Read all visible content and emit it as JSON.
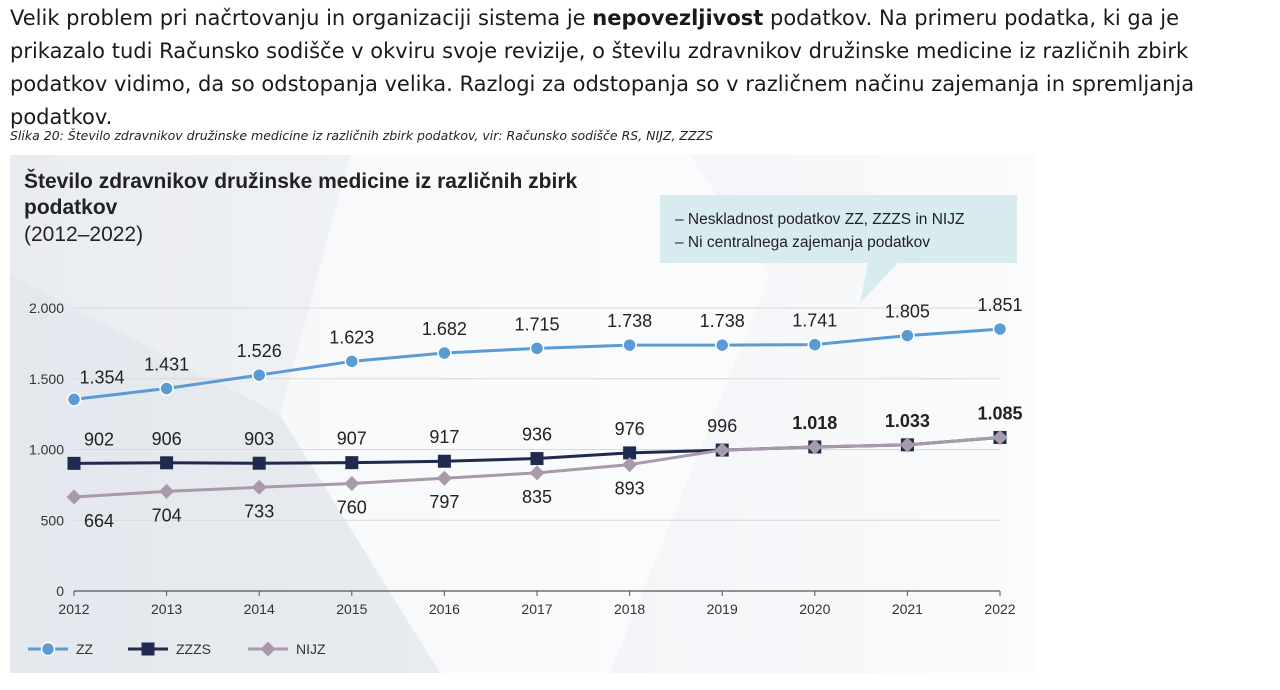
{
  "intro": {
    "part1": "Velik problem pri načrtovanju in organizaciji sistema je ",
    "bold": "nepovezljivost",
    "part2": " podatkov. Na primeru podatka, ki ga je prikazalo tudi Računsko sodišče v okviru svoje revizije, o številu zdravnikov družinske medicine iz različnih zbirk podatkov vidimo, da so odstopanja velika. Razlogi za odstopanja so v različnem načinu zajemanja in spremljanja podatkov."
  },
  "caption": "Slika 20: Število zdravnikov družinske medicine iz različnih zbirk podatkov, vir: Računsko sodišče RS, NIJZ, ZZZS",
  "callout": {
    "line1": "–  Neskladnost podatkov ZZ, ZZZS in NIJZ",
    "line2": "–  Ni centralnega zajemanja podatkov"
  },
  "colors": {
    "zz": "#5b9bd5",
    "zzzs": "#1f2a4e",
    "nijz": "#a899ab",
    "callout_bg": "#d8ecf0",
    "grid": "#d9d9d9"
  },
  "chart_data": {
    "type": "line",
    "title_line1": "Število zdravnikov družinske medicine iz različnih zbirk",
    "title_line2": "podatkov",
    "subtitle": "(2012–2022)",
    "categories": [
      "2012",
      "2013",
      "2014",
      "2015",
      "2016",
      "2017",
      "2018",
      "2019",
      "2020",
      "2021",
      "2022"
    ],
    "ylim": [
      0,
      2000
    ],
    "yticks": [
      0,
      500,
      1000,
      1500,
      2000
    ],
    "ytick_labels": [
      "0",
      "500",
      "1.000",
      "1.500",
      "2.000"
    ],
    "grid": true,
    "legend_position": "bottom-left",
    "series": [
      {
        "name": "ZZ",
        "marker": "circle",
        "color_key": "zz",
        "values": [
          1354,
          1431,
          1526,
          1623,
          1682,
          1715,
          1738,
          1738,
          1741,
          1805,
          1851
        ],
        "labels": [
          "1.354",
          "1.431",
          "1.526",
          "1.623",
          "1.682",
          "1.715",
          "1.738",
          "1.738",
          "1.741",
          "1.805",
          "1.851"
        ]
      },
      {
        "name": "ZZZS",
        "marker": "square",
        "color_key": "zzzs",
        "values": [
          902,
          906,
          903,
          907,
          917,
          936,
          976,
          996,
          1018,
          1033,
          1085
        ],
        "labels": [
          "902",
          "906",
          "903",
          "907",
          "917",
          "936",
          "976",
          "996",
          "1.018",
          "1.033",
          "1.085"
        ]
      },
      {
        "name": "NIJZ",
        "marker": "diamond",
        "color_key": "nijz",
        "values": [
          664,
          704,
          733,
          760,
          797,
          835,
          893,
          996,
          1018,
          1033,
          1085
        ],
        "labels": [
          "664",
          "704",
          "733",
          "760",
          "797",
          "835",
          "893",
          "",
          "",
          "",
          ""
        ]
      }
    ]
  }
}
